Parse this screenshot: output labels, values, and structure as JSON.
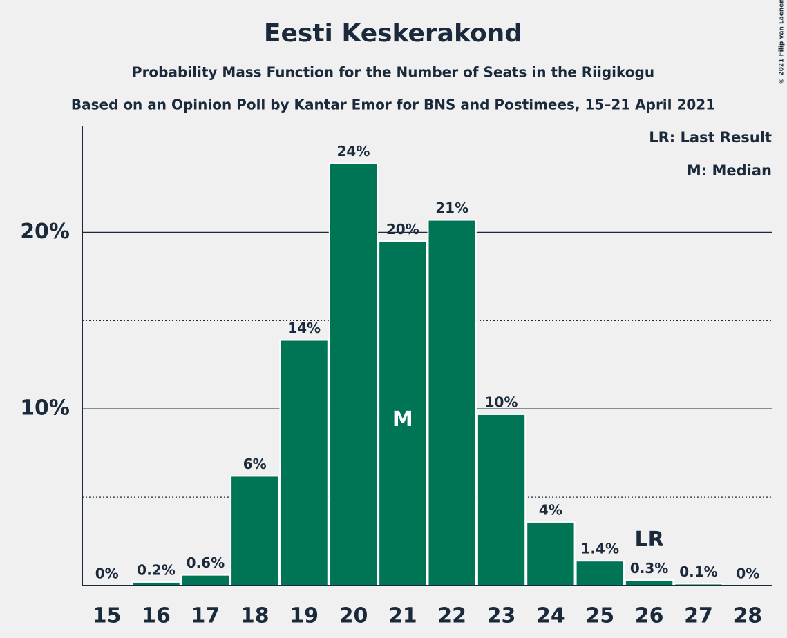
{
  "chart_data": {
    "type": "bar",
    "title": "Eesti Keskerakond",
    "subtitle": "Probability Mass Function for the Number of Seats in the Riigikogu",
    "subtitle2": "Based on an Opinion Poll by Kantar Emor for BNS and Postimees, 15–21 April 2021",
    "copyright": "© 2021 Filip van Laenen",
    "categories": [
      "15",
      "16",
      "17",
      "18",
      "19",
      "20",
      "21",
      "22",
      "23",
      "24",
      "25",
      "26",
      "27",
      "28"
    ],
    "values": [
      0,
      0.2,
      0.6,
      6.2,
      13.9,
      23.9,
      19.5,
      20.7,
      9.7,
      3.6,
      1.4,
      0.3,
      0.1,
      0
    ],
    "value_labels": [
      "0%",
      "0.2%",
      "0.6%",
      "6%",
      "14%",
      "24%",
      "20%",
      "21%",
      "10%",
      "4%",
      "1.4%",
      "0.3%",
      "0.1%",
      "0%"
    ],
    "color": "#007556",
    "ylim": [
      0,
      26
    ],
    "yticks": [
      {
        "value": 10,
        "label": "10%"
      },
      {
        "value": 20,
        "label": "20%"
      }
    ],
    "minor_yticks": [
      5,
      15
    ],
    "grid": true,
    "annotations": [
      {
        "category": "21",
        "text": "M"
      },
      {
        "category": "26",
        "text": "LR"
      }
    ],
    "legend": [
      "LR: Last Result",
      "M: Median"
    ]
  }
}
